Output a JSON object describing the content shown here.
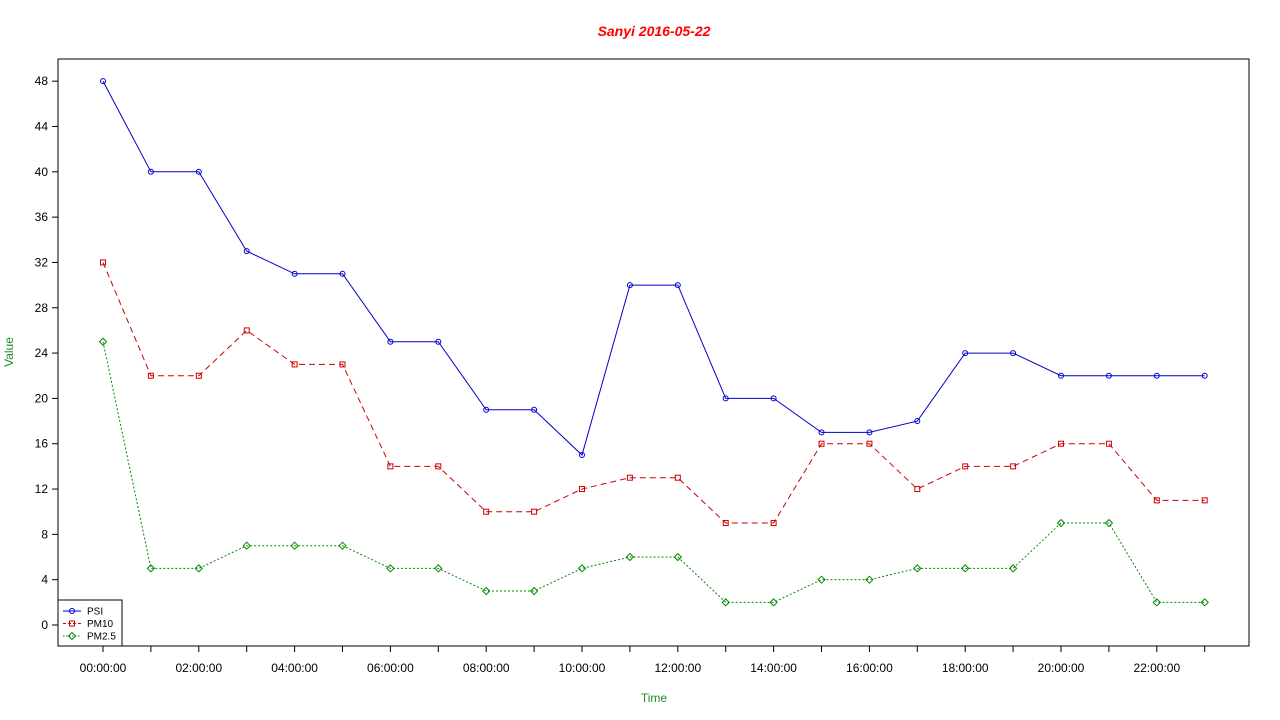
{
  "chart_data": {
    "type": "line",
    "title": "Sanyi 2016-05-22",
    "xlabel": "Time",
    "ylabel": "Value",
    "x": [
      "00:00:00",
      "01:00:00",
      "02:00:00",
      "03:00:00",
      "04:00:00",
      "05:00:00",
      "06:00:00",
      "07:00:00",
      "08:00:00",
      "09:00:00",
      "10:00:00",
      "11:00:00",
      "12:00:00",
      "13:00:00",
      "14:00:00",
      "15:00:00",
      "16:00:00",
      "17:00:00",
      "18:00:00",
      "19:00:00",
      "20:00:00",
      "21:00:00",
      "22:00:00",
      "23:00:00"
    ],
    "x_tick_labels": [
      "00:00:00",
      "02:00:00",
      "04:00:00",
      "06:00:00",
      "08:00:00",
      "10:00:00",
      "12:00:00",
      "14:00:00",
      "16:00:00",
      "18:00:00",
      "20:00:00",
      "22:00:00"
    ],
    "y_ticks": [
      0,
      4,
      8,
      12,
      16,
      20,
      24,
      28,
      32,
      36,
      40,
      44,
      48
    ],
    "ylim": [
      -2,
      50
    ],
    "grid": false,
    "legend_position": "bottom-left",
    "series": [
      {
        "name": "PSI",
        "color": "#0000CC",
        "line_style": "solid",
        "marker": "circle",
        "values": [
          48,
          40,
          40,
          33,
          31,
          31,
          25,
          25,
          19,
          19,
          15,
          30,
          30,
          20,
          20,
          17,
          17,
          18,
          24,
          24,
          22,
          22,
          22,
          22
        ]
      },
      {
        "name": "PM10",
        "color": "#CC0000",
        "line_style": "dashed",
        "marker": "square",
        "values": [
          32,
          22,
          22,
          26,
          23,
          23,
          14,
          14,
          10,
          10,
          12,
          13,
          13,
          9,
          9,
          16,
          16,
          12,
          14,
          14,
          16,
          16,
          11,
          11
        ]
      },
      {
        "name": "PM2.5",
        "color": "#008800",
        "line_style": "dotted",
        "marker": "diamond",
        "values": [
          25,
          5,
          5,
          7,
          7,
          7,
          5,
          5,
          3,
          3,
          5,
          6,
          6,
          2,
          2,
          4,
          4,
          5,
          5,
          5,
          9,
          9,
          2,
          2
        ]
      }
    ],
    "colors": {
      "title": "#FF0000",
      "axis_labels": "#228B22"
    }
  }
}
